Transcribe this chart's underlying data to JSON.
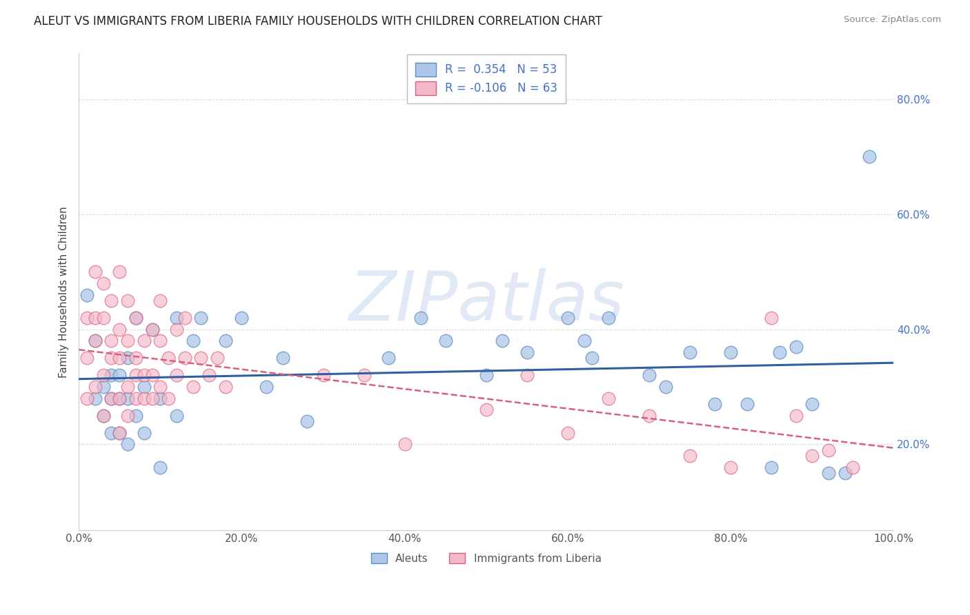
{
  "title": "ALEUT VS IMMIGRANTS FROM LIBERIA FAMILY HOUSEHOLDS WITH CHILDREN CORRELATION CHART",
  "source": "Source: ZipAtlas.com",
  "ylabel": "Family Households with Children",
  "xlim": [
    0.0,
    1.0
  ],
  "ylim": [
    0.05,
    0.88
  ],
  "xticks": [
    0.0,
    0.2,
    0.4,
    0.6,
    0.8,
    1.0
  ],
  "yticks": [
    0.2,
    0.4,
    0.6,
    0.8
  ],
  "xticklabels": [
    "0.0%",
    "20.0%",
    "40.0%",
    "60.0%",
    "80.0%",
    "100.0%"
  ],
  "yticklabels": [
    "20.0%",
    "40.0%",
    "60.0%",
    "80.0%"
  ],
  "legend1_label": "R =  0.354   N = 53",
  "legend2_label": "R = -0.106   N = 63",
  "aleuts_color": "#aec6e8",
  "liberia_color": "#f5b8c8",
  "aleuts_edge_color": "#5b8ec4",
  "liberia_edge_color": "#d9607a",
  "aleuts_line_color": "#2e5fa3",
  "liberia_line_color": "#d9607a",
  "background_color": "#ffffff",
  "grid_color": "#cccccc",
  "watermark": "ZIPatlas",
  "aleuts_x": [
    0.01,
    0.02,
    0.02,
    0.03,
    0.03,
    0.04,
    0.04,
    0.04,
    0.05,
    0.05,
    0.05,
    0.06,
    0.06,
    0.06,
    0.07,
    0.07,
    0.08,
    0.08,
    0.09,
    0.1,
    0.1,
    0.12,
    0.12,
    0.14,
    0.15,
    0.18,
    0.2,
    0.23,
    0.25,
    0.28,
    0.38,
    0.42,
    0.45,
    0.5,
    0.52,
    0.55,
    0.6,
    0.62,
    0.63,
    0.65,
    0.7,
    0.72,
    0.75,
    0.78,
    0.8,
    0.82,
    0.85,
    0.86,
    0.88,
    0.9,
    0.92,
    0.94,
    0.97
  ],
  "aleuts_y": [
    0.46,
    0.38,
    0.28,
    0.3,
    0.25,
    0.32,
    0.28,
    0.22,
    0.32,
    0.28,
    0.22,
    0.35,
    0.28,
    0.2,
    0.42,
    0.25,
    0.3,
    0.22,
    0.4,
    0.16,
    0.28,
    0.42,
    0.25,
    0.38,
    0.42,
    0.38,
    0.42,
    0.3,
    0.35,
    0.24,
    0.35,
    0.42,
    0.38,
    0.32,
    0.38,
    0.36,
    0.42,
    0.38,
    0.35,
    0.42,
    0.32,
    0.3,
    0.36,
    0.27,
    0.36,
    0.27,
    0.16,
    0.36,
    0.37,
    0.27,
    0.15,
    0.15,
    0.7
  ],
  "liberia_x": [
    0.01,
    0.01,
    0.01,
    0.02,
    0.02,
    0.02,
    0.02,
    0.03,
    0.03,
    0.03,
    0.03,
    0.04,
    0.04,
    0.04,
    0.04,
    0.05,
    0.05,
    0.05,
    0.05,
    0.05,
    0.06,
    0.06,
    0.06,
    0.06,
    0.07,
    0.07,
    0.07,
    0.07,
    0.08,
    0.08,
    0.08,
    0.09,
    0.09,
    0.09,
    0.1,
    0.1,
    0.1,
    0.11,
    0.11,
    0.12,
    0.12,
    0.13,
    0.13,
    0.14,
    0.15,
    0.16,
    0.17,
    0.18,
    0.3,
    0.35,
    0.4,
    0.5,
    0.55,
    0.6,
    0.65,
    0.7,
    0.75,
    0.8,
    0.85,
    0.88,
    0.9,
    0.92,
    0.95
  ],
  "liberia_y": [
    0.28,
    0.35,
    0.42,
    0.3,
    0.38,
    0.42,
    0.5,
    0.25,
    0.32,
    0.42,
    0.48,
    0.35,
    0.28,
    0.38,
    0.45,
    0.4,
    0.35,
    0.28,
    0.22,
    0.5,
    0.45,
    0.38,
    0.3,
    0.25,
    0.42,
    0.35,
    0.28,
    0.32,
    0.38,
    0.32,
    0.28,
    0.4,
    0.32,
    0.28,
    0.38,
    0.45,
    0.3,
    0.35,
    0.28,
    0.4,
    0.32,
    0.35,
    0.42,
    0.3,
    0.35,
    0.32,
    0.35,
    0.3,
    0.32,
    0.32,
    0.2,
    0.26,
    0.32,
    0.22,
    0.28,
    0.25,
    0.18,
    0.16,
    0.42,
    0.25,
    0.18,
    0.19,
    0.16
  ]
}
